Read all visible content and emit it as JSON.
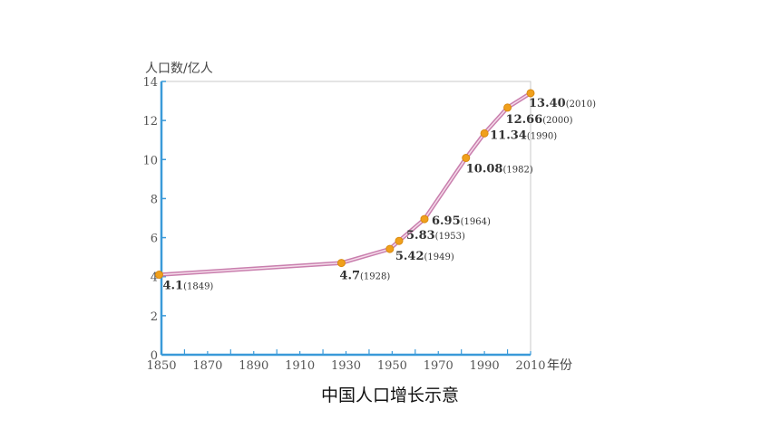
{
  "chart_data": {
    "type": "line",
    "title": "",
    "xlabel": "年份",
    "ylabel": "人口数/亿人",
    "xlim": [
      1850,
      2010
    ],
    "ylim": [
      0,
      14
    ],
    "x_ticks": [
      "1850",
      "1870",
      "1890",
      "1910",
      "1930",
      "1950",
      "1970",
      "1990",
      "2010"
    ],
    "y_ticks": [
      "0",
      "2",
      "4",
      "6",
      "8",
      "10",
      "12",
      "14"
    ],
    "grid": false,
    "line_color": "#c97fae",
    "marker_color": "#f0a01c",
    "axis_color": "#3a9ad9",
    "points": [
      {
        "x": 1849,
        "y": 4.1,
        "value_label": "4.1",
        "year_label": "(1849)"
      },
      {
        "x": 1928,
        "y": 4.7,
        "value_label": "4.7",
        "year_label": "(1928)"
      },
      {
        "x": 1949,
        "y": 5.42,
        "value_label": "5.42",
        "year_label": "(1949)"
      },
      {
        "x": 1953,
        "y": 5.83,
        "value_label": "5.83",
        "year_label": "(1953)"
      },
      {
        "x": 1964,
        "y": 6.95,
        "value_label": "6.95",
        "year_label": "(1964)"
      },
      {
        "x": 1982,
        "y": 10.08,
        "value_label": "10.08",
        "year_label": "(1982)"
      },
      {
        "x": 1990,
        "y": 11.34,
        "value_label": "11.34",
        "year_label": "(1990)"
      },
      {
        "x": 2000,
        "y": 12.66,
        "value_label": "12.66",
        "year_label": "(2000)"
      },
      {
        "x": 2010,
        "y": 13.4,
        "value_label": "13.40",
        "year_label": "(2010)"
      }
    ]
  },
  "caption": "中国人口增长示意"
}
